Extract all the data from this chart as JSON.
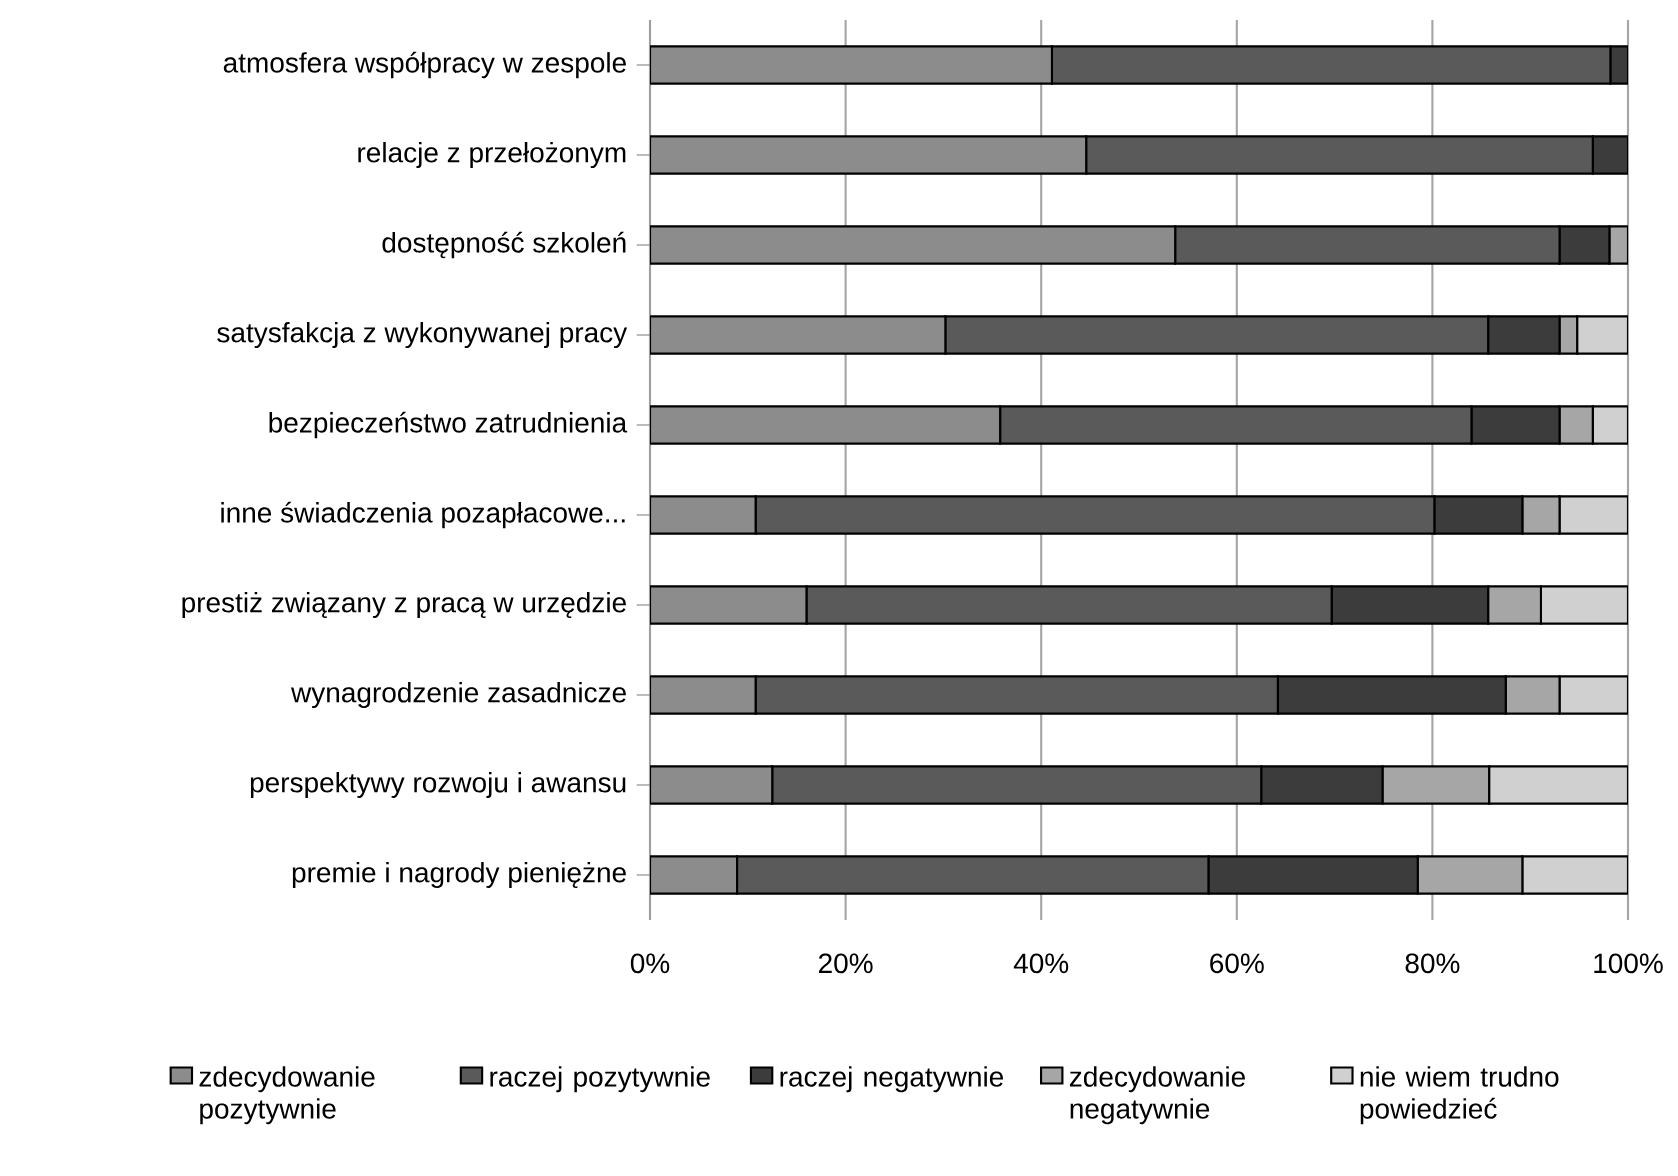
{
  "chart_data": {
    "type": "bar",
    "orientation": "horizontal",
    "stacked": true,
    "categories": [
      "atmosfera współpracy w zespole",
      "relacje z przełożonym",
      "dostępność szkoleń",
      "satysfakcja z wykonywanej pracy",
      "bezpieczeństwo zatrudnienia",
      "inne świadczenia pozapłacowe...",
      "prestiż związany z pracą w urzędzie",
      "wynagrodzenie zasadnicze",
      "perspektywy rozwoju i awansu",
      "premie i nagrody pieniężne"
    ],
    "series": [
      {
        "name": "zdecydowanie pozytywnie",
        "color": "#8c8c8c",
        "values": [
          41.1,
          44.6,
          53.7,
          30.2,
          35.8,
          10.8,
          16.0,
          10.8,
          12.5,
          8.9
        ]
      },
      {
        "name": "raczej pozytywnie",
        "color": "#5a5a5a",
        "values": [
          57.1,
          51.8,
          39.3,
          55.5,
          48.2,
          69.4,
          53.7,
          53.4,
          50.0,
          48.2
        ]
      },
      {
        "name": "raczej negatywnie",
        "color": "#3c3c3c",
        "values": [
          1.8,
          3.6,
          5.1,
          7.3,
          9.0,
          9.0,
          16.0,
          23.3,
          12.4,
          21.4
        ]
      },
      {
        "name": "zdecydowanie negatywnie",
        "color": "#a6a6a6",
        "values": [
          0,
          0,
          1.9,
          1.8,
          3.4,
          3.8,
          5.4,
          5.5,
          10.9,
          10.7
        ]
      },
      {
        "name": "nie wiem trudno powiedzieć",
        "color": "#d0d0d0",
        "values": [
          0,
          0,
          0,
          5.2,
          3.6,
          7.0,
          8.9,
          7.0,
          14.2,
          10.8
        ]
      }
    ],
    "xlim": [
      0,
      100
    ],
    "xticks": [
      {
        "value": 0,
        "label": "0%"
      },
      {
        "value": 20,
        "label": "20%"
      },
      {
        "value": 40,
        "label": "40%"
      },
      {
        "value": 60,
        "label": "60%"
      },
      {
        "value": 80,
        "label": "80%"
      },
      {
        "value": 100,
        "label": "100%"
      }
    ],
    "grid": "x",
    "legend": "bottom"
  }
}
